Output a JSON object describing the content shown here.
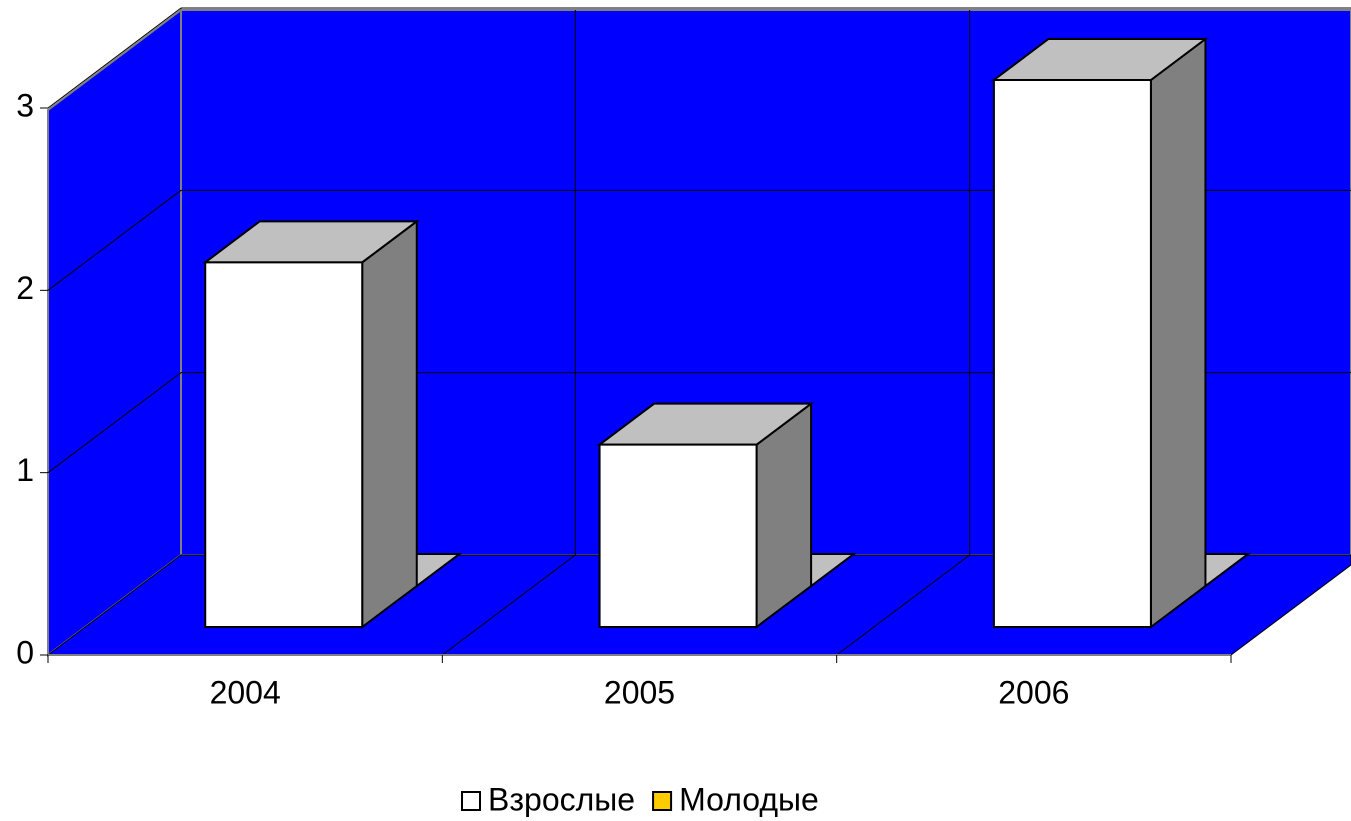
{
  "chart_data": {
    "type": "bar3d",
    "categories": [
      "2004",
      "2005",
      "2006"
    ],
    "series": [
      {
        "name": "Взрослые",
        "color": "#ffffff",
        "values": [
          2,
          1,
          3
        ]
      },
      {
        "name": "Молодые",
        "color": "#ffcc00",
        "values": [
          0,
          0,
          0
        ]
      }
    ],
    "ylim": [
      0,
      3
    ],
    "yticks": [
      0,
      1,
      2,
      3
    ],
    "grid": true,
    "wall_color": "#0000ff",
    "legend": "bottom"
  }
}
